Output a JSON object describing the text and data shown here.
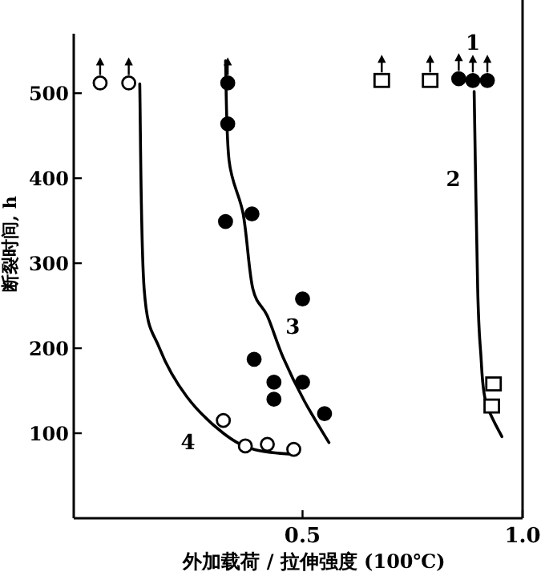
{
  "chart_data": {
    "type": "scatter",
    "xlabel": "外加载荷 / 拉伸强度 (100℃)",
    "ylabel": "断裂时间, h",
    "xlim": [
      -0.02,
      1.0
    ],
    "ylim": [
      0,
      570
    ],
    "xticks": [
      0.5,
      {
        "value": 1.0,
        "label": "1.0"
      }
    ],
    "yticks": [
      100,
      200,
      300,
      400,
      500
    ],
    "grid": false,
    "legend": false,
    "series": [
      {
        "marker": "circle",
        "color": "#ffffff",
        "x": [
          0.04,
          0.105,
          0.32,
          0.37,
          0.42,
          0.48
        ],
        "values": [
          512,
          512,
          115,
          85,
          87,
          81
        ]
      },
      {
        "marker": "circle",
        "color": "#000000",
        "x": [
          0.33,
          0.33,
          0.325,
          0.385,
          0.5,
          0.39,
          0.435,
          0.5,
          0.435,
          0.55
        ],
        "values": [
          512,
          464,
          349,
          358,
          258,
          187,
          160,
          160,
          140,
          123
        ]
      },
      {
        "marker": "square",
        "color": "#ffffff",
        "x": [
          0.68,
          0.79,
          0.934,
          0.93
        ],
        "values": [
          515,
          515,
          158,
          132
        ]
      },
      {
        "name": "1",
        "marker": "circle",
        "color": "#000000",
        "x": [
          0.855,
          0.887,
          0.92
        ],
        "values": [
          517,
          515,
          515
        ]
      },
      {
        "type": "line",
        "name": "2",
        "marker": "none",
        "line_style": "solid",
        "color": "#000000",
        "x": [
          0.89,
          0.898,
          0.905,
          0.916,
          0.953
        ],
        "values": [
          502,
          270,
          194,
          138,
          96
        ]
      },
      {
        "type": "line",
        "name": "3",
        "marker": "none",
        "line_style": "solid",
        "color": "#000000",
        "x": [
          0.325,
          0.333,
          0.365,
          0.387,
          0.42,
          0.456,
          0.504,
          0.56
        ],
        "values": [
          538,
          421,
          358,
          270,
          238,
          189,
          138,
          89
        ]
      },
      {
        "type": "line",
        "name": "4",
        "marker": "none",
        "line_style": "solid",
        "color": "#000000",
        "x": [
          0.13,
          0.14,
          0.175,
          0.237,
          0.32,
          0.39,
          0.48
        ],
        "values": [
          511,
          270,
          200,
          143,
          100,
          81,
          75
        ]
      }
    ]
  }
}
